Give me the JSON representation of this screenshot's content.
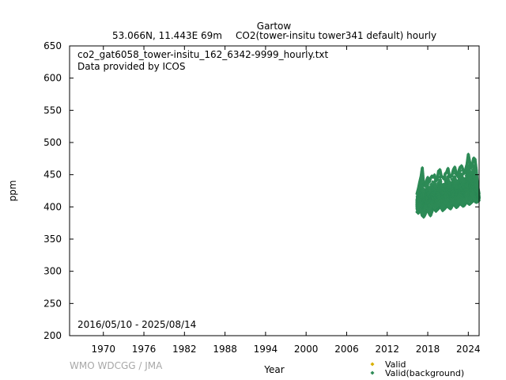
{
  "header": {
    "station": "Gartow",
    "location": "53.066N, 11.443E 69m",
    "species": "CO2(tower-insitu tower341 default) hourly"
  },
  "plot": {
    "filename": "co2_gat6058_tower-insitu_162_6342-9999_hourly.txt",
    "provider": "Data provided by ICOS",
    "period": "2016/05/10 - 2025/08/14"
  },
  "footer": {
    "credit": "WMO WDCGG / JMA"
  },
  "chart_data": {
    "type": "scatter",
    "xlabel": "Year",
    "ylabel": "ppm",
    "xlim": [
      1965.0,
      2025.6
    ],
    "ylim": [
      200,
      650
    ],
    "x_ticks": [
      1970,
      1976,
      1982,
      1988,
      1994,
      2000,
      2006,
      2012,
      2018,
      2024
    ],
    "y_ticks": [
      200,
      250,
      300,
      350,
      400,
      450,
      500,
      550,
      600,
      650
    ],
    "legend_position": "bottom-right",
    "grid": false,
    "series": [
      {
        "name": "Valid",
        "color": "#d8b000",
        "marker": "diamond",
        "values": []
      },
      {
        "name": "Valid(background)",
        "color": "#2e8b57",
        "marker": "diamond",
        "x": [
          2016.4,
          2016.6,
          2016.8,
          2017.0,
          2017.2,
          2017.4,
          2017.6,
          2017.8,
          2018.0,
          2018.2,
          2018.4,
          2018.6,
          2018.8,
          2019.0,
          2019.2,
          2019.4,
          2019.6,
          2019.8,
          2020.0,
          2020.2,
          2020.4,
          2020.6,
          2020.8,
          2021.0,
          2021.2,
          2021.4,
          2021.6,
          2021.8,
          2022.0,
          2022.2,
          2022.4,
          2022.6,
          2022.8,
          2023.0,
          2023.2,
          2023.4,
          2023.6,
          2023.8,
          2024.0,
          2024.2,
          2024.4,
          2024.6,
          2024.8,
          2025.0,
          2025.2,
          2025.4,
          2025.6
        ],
        "low": [
          392,
          390,
          395,
          393,
          386,
          384,
          388,
          394,
          395,
          390,
          386,
          392,
          398,
          396,
          393,
          395,
          397,
          400,
          399,
          394,
          396,
          398,
          402,
          400,
          398,
          397,
          401,
          404,
          402,
          399,
          400,
          403,
          405,
          403,
          401,
          402,
          405,
          407,
          405,
          404,
          406,
          408,
          410,
          408,
          407,
          408,
          410
        ],
        "high": [
          420,
          428,
          438,
          447,
          461,
          436,
          432,
          440,
          446,
          438,
          444,
          448,
          446,
          450,
          440,
          442,
          456,
          458,
          448,
          446,
          443,
          452,
          454,
          460,
          448,
          446,
          450,
          458,
          462,
          452,
          448,
          456,
          462,
          464,
          458,
          452,
          458,
          466,
          482,
          470,
          460,
          466,
          476,
          474,
          456,
          432,
          420
        ]
      }
    ]
  }
}
